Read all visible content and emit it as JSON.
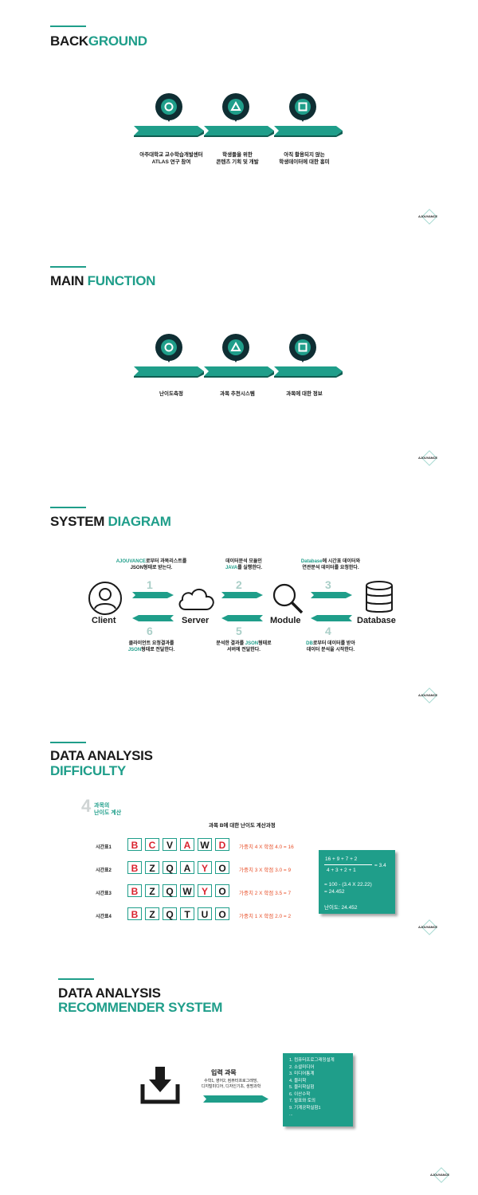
{
  "background": {
    "title_a": "BACK",
    "title_b": "GROUND",
    "steps": [
      {
        "icon": "circle-icon",
        "line1": "아주대학교 교수학습개발센터",
        "line2": "ATLAS 연구 참여"
      },
      {
        "icon": "triangle-icon",
        "line1": "학생들을 위한",
        "line2": "콘텐츠 기획 및 개발"
      },
      {
        "icon": "square-icon",
        "line1": "아직 활용되지 않는",
        "line2": "학생데이터에 대한 흥미"
      }
    ],
    "logo": "AJOUVANCE"
  },
  "main_function": {
    "title_a": "MAIN ",
    "title_b": "FUNCTION",
    "steps": [
      {
        "icon": "circle-icon",
        "line1": "난이도측정"
      },
      {
        "icon": "triangle-icon",
        "line1": "과목 추천시스템"
      },
      {
        "icon": "square-icon",
        "line1": "과목에 대한 정보"
      }
    ],
    "logo": "AJOUVANCE"
  },
  "system_diagram": {
    "title_a": "SYSTEM ",
    "title_b": "DIAGRAM",
    "nodes": [
      "Client",
      "Server",
      "Module",
      "Database"
    ],
    "top_captions": [
      {
        "hl": "AJOUVANCE",
        "rest": "로부터 과목리스트를",
        "line2": "JSON형태로 받는다."
      },
      {
        "line1": "데이터분석 모듈인",
        "hl": "JAVA",
        "rest": "를 실행한다."
      },
      {
        "hl": "Database",
        "rest": "에 시간표 데이터와",
        "line2": "연관분석 데이터를 요청한다."
      }
    ],
    "bottom_captions": [
      {
        "line1": "클라이언트 요청결과를",
        "hl": "JSON",
        "rest": "형태로 전달한다."
      },
      {
        "line1a": "분석한 결과를 ",
        "hl": "JSON",
        "line1b": "형태로",
        "line2": "서버에 전달한다."
      },
      {
        "hl": "DB",
        "rest": "로부터 데이터를 받아",
        "line2": "데이터 분석을 시작한다."
      }
    ],
    "step_numbers": {
      "top": [
        "1",
        "2",
        "3"
      ],
      "bottom": [
        "6",
        "5",
        "4"
      ]
    },
    "logo": "AJOUVANCE"
  },
  "difficulty": {
    "title_line1": "DATA ANALYSIS",
    "title_line2": "DIFFICULTY",
    "badge_number": "4",
    "badge_line1": "과목의",
    "badge_line2": "난이도 계산",
    "subtitle": "과목 B에 대한 난이도 계산과정",
    "rows": [
      {
        "label": "시간표1",
        "cells": [
          "B",
          "C",
          "V",
          "A",
          "W",
          "D"
        ],
        "hot": [
          0,
          1,
          3,
          5
        ],
        "formula": "가중치 4 X 학점 4.0 = 16"
      },
      {
        "label": "시간표2",
        "cells": [
          "B",
          "Z",
          "Q",
          "A",
          "Y",
          "O"
        ],
        "hot": [
          0,
          4
        ],
        "formula": "가중치 3 X 학점 3.0 = 9"
      },
      {
        "label": "시간표3",
        "cells": [
          "B",
          "Z",
          "Q",
          "W",
          "Y",
          "O"
        ],
        "hot": [
          0,
          4
        ],
        "formula": "가중치 2 X 학점 3.5 = 7"
      },
      {
        "label": "시간표4",
        "cells": [
          "B",
          "Z",
          "Q",
          "T",
          "U",
          "O"
        ],
        "hot": [
          0
        ],
        "formula": "가중치 1 X 학점 2.0 = 2"
      }
    ],
    "calc": {
      "numerator": "16 + 9 + 7 + 2",
      "denominator": "4 + 3 + 2 + 1",
      "result": "= 3.4",
      "step1": "= 100 - (3.4 X 22.22)",
      "step2": "= 24.452",
      "final": "난이도: 24.452"
    },
    "logo": "AJOUVANCE"
  },
  "recommender": {
    "title_line1": "DATA ANALYSIS",
    "title_line2": "RECOMMENDER SYSTEM",
    "input_title": "입력 과목",
    "input_line1": "수학1, 영어2, 컴퓨터프로그래밍,",
    "input_line2": "디지털미디어, 디자인기초, 생명과학",
    "list": [
      "1. 컴퓨터프로그래밍설계",
      "2. 소셜미디어",
      "3. 미디어통계",
      "4. 물리학",
      "5. 물리학실험",
      "6. 이산수학",
      "7. 발표와 토의",
      "9. 기계공학실험1",
      "..."
    ],
    "logo": "AJOUVANCE"
  }
}
